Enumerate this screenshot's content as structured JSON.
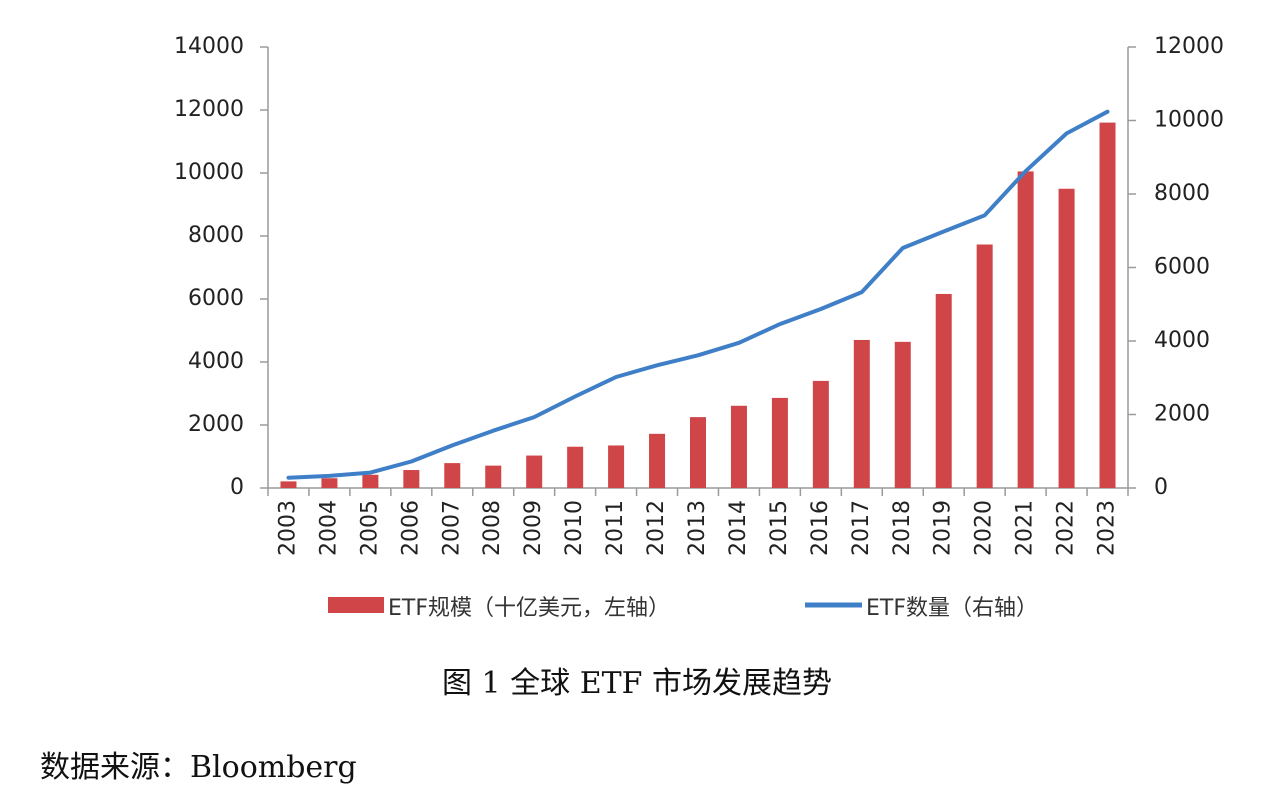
{
  "chart_data": {
    "type": "bar",
    "title": "",
    "categories": [
      "2003",
      "2004",
      "2005",
      "2006",
      "2007",
      "2008",
      "2009",
      "2010",
      "2011",
      "2012",
      "2013",
      "2014",
      "2015",
      "2016",
      "2017",
      "2018",
      "2019",
      "2020",
      "2021",
      "2022",
      "2023"
    ],
    "series": [
      {
        "name": "ETF规模（十亿美元，左轴）",
        "type": "bar",
        "axis": "left",
        "color": "#cf4548",
        "values": [
          210,
          310,
          420,
          570,
          790,
          710,
          1030,
          1310,
          1350,
          1720,
          2250,
          2610,
          2860,
          3400,
          4700,
          4640,
          6160,
          7730,
          10050,
          9500,
          11600
        ]
      },
      {
        "name": "ETF数量（右轴）",
        "type": "line",
        "axis": "right",
        "color": "#3f7fc7",
        "values": [
          280,
          330,
          420,
          720,
          1160,
          1560,
          1930,
          2490,
          3020,
          3340,
          3610,
          3950,
          4460,
          4870,
          5330,
          6530,
          6980,
          7420,
          8620,
          9650,
          10240
        ]
      }
    ],
    "y_left": {
      "range": [
        0,
        14000
      ],
      "ticks": [
        "0",
        "2000",
        "4000",
        "6000",
        "8000",
        "10000",
        "12000",
        "14000"
      ]
    },
    "y_right": {
      "range": [
        0,
        12000
      ],
      "ticks": [
        "0",
        "2000",
        "4000",
        "6000",
        "8000",
        "10000",
        "12000"
      ]
    },
    "grid": false,
    "legend_position": "bottom",
    "xlabel": "",
    "ylabel": ""
  },
  "caption": "图 1  全球 ETF 市场发展趋势",
  "source": "数据来源：Bloomberg"
}
